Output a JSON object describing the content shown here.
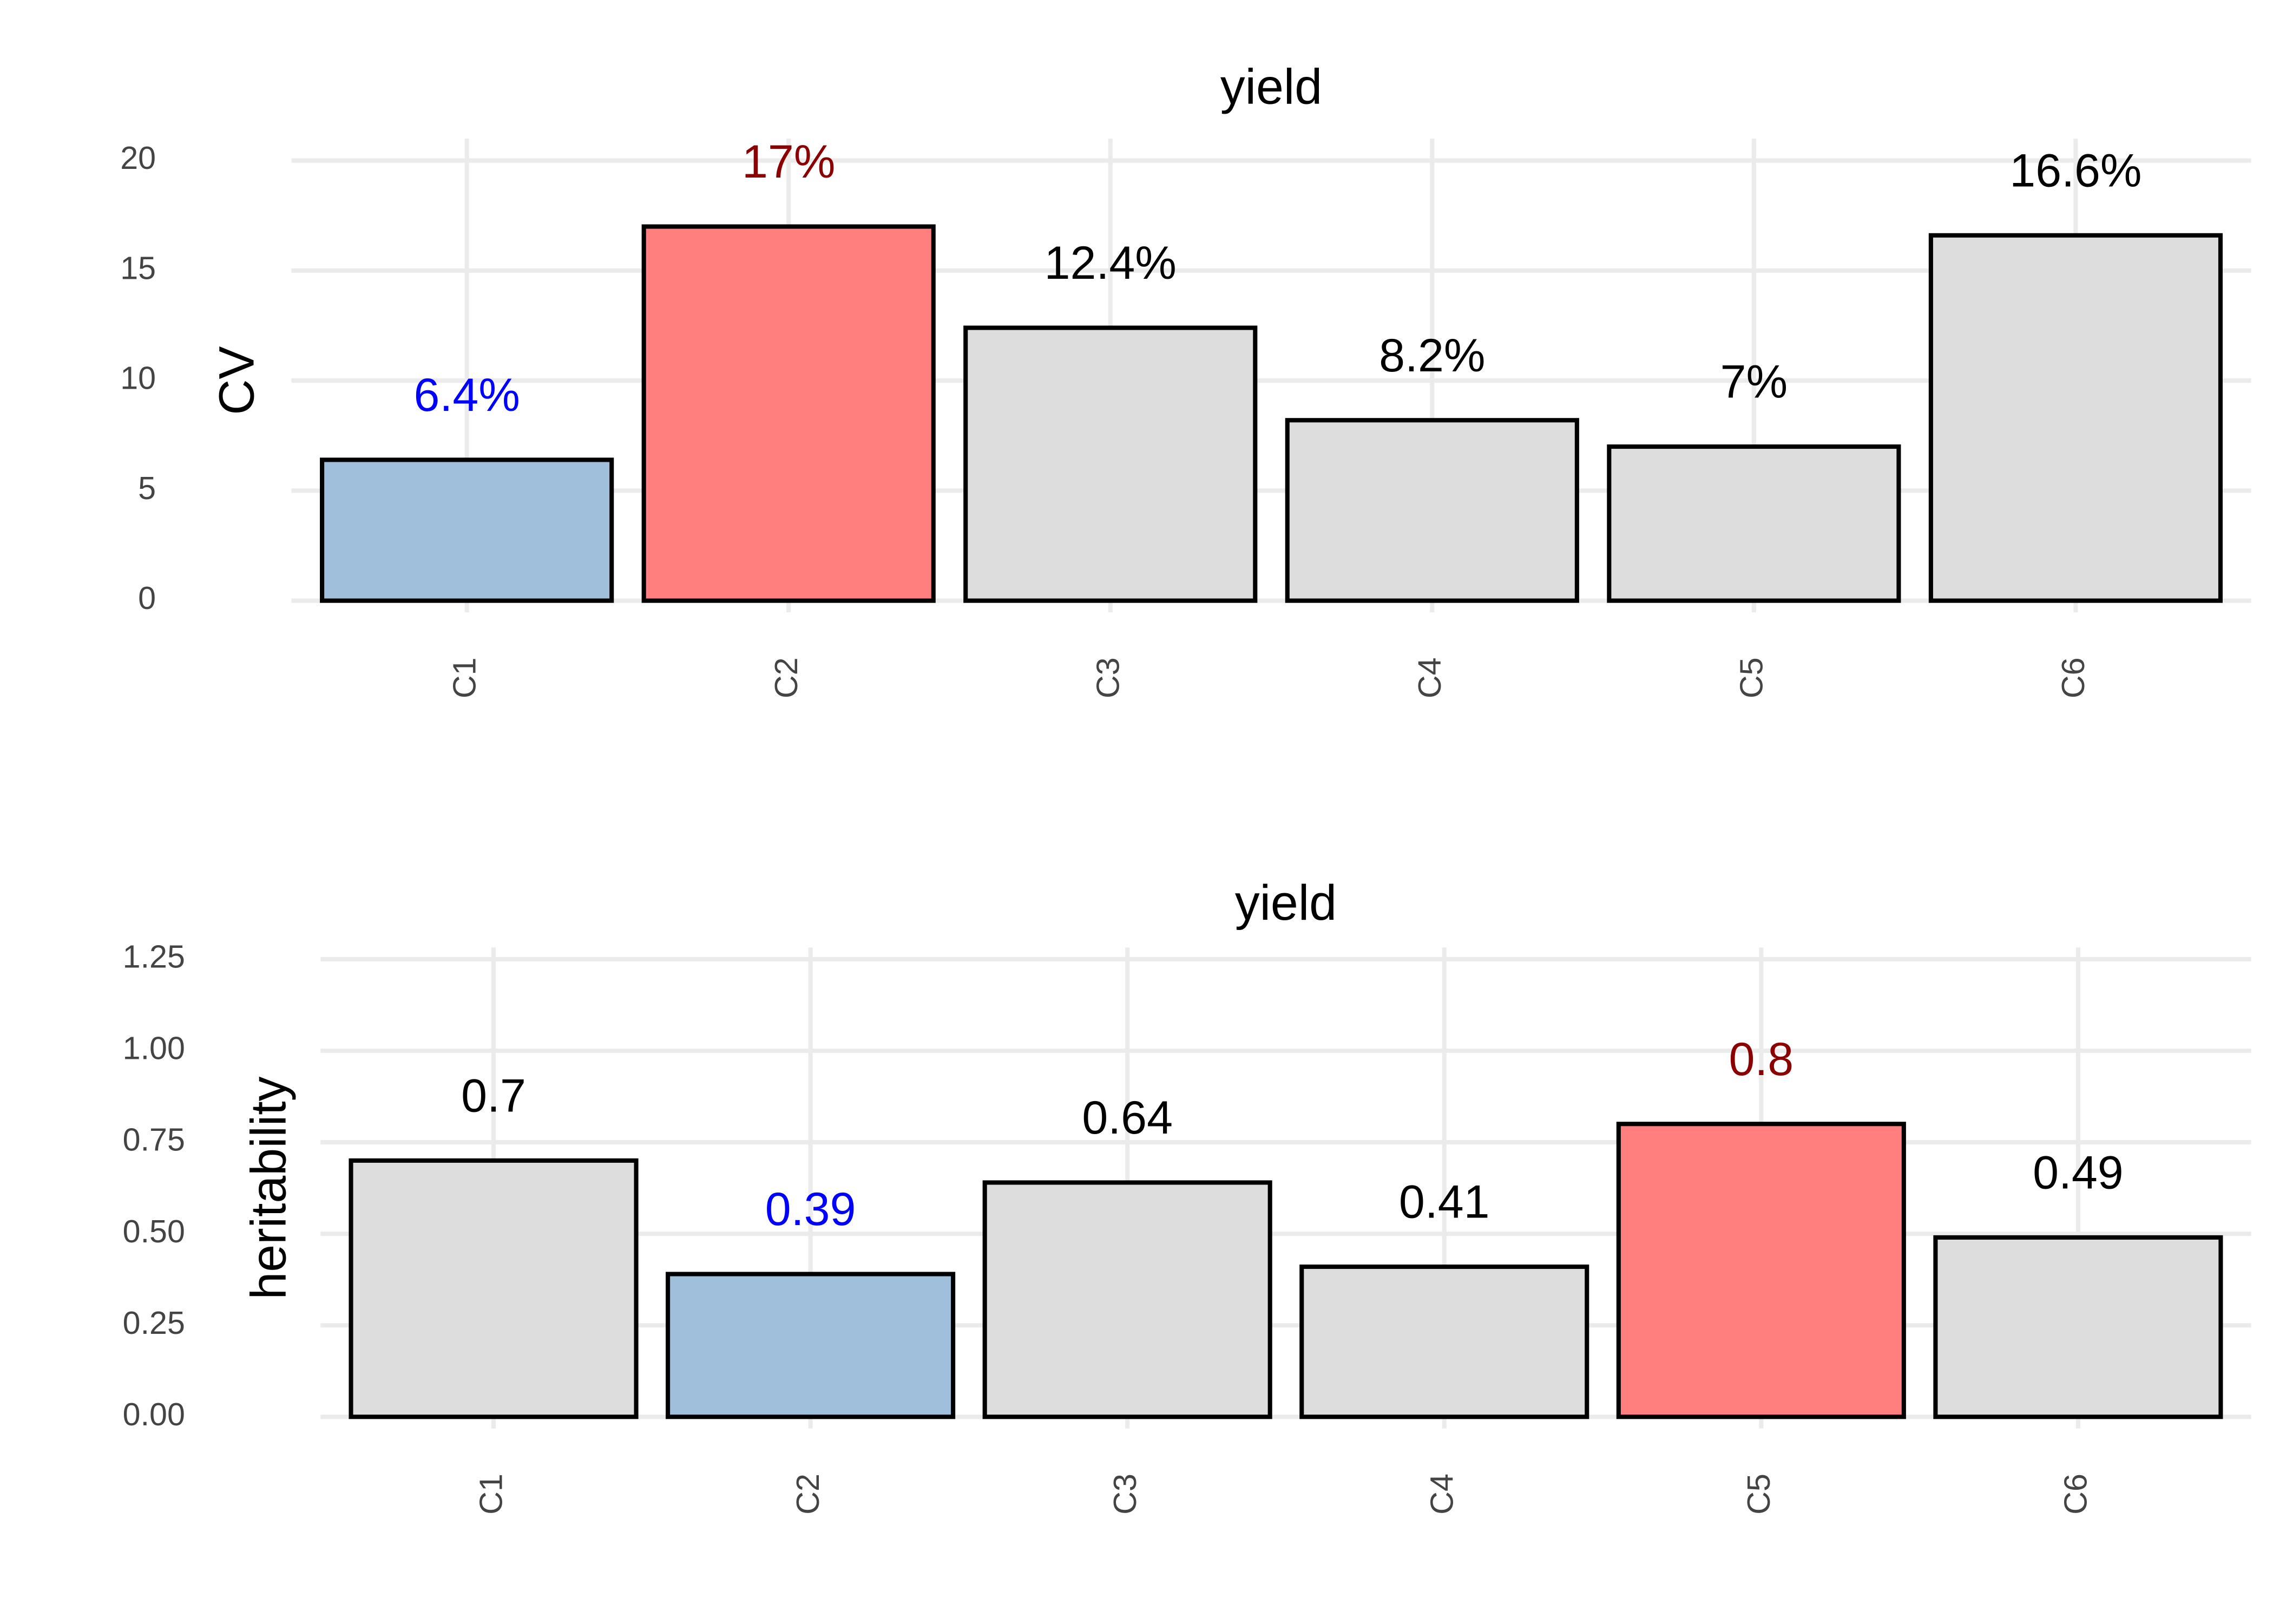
{
  "chart_data": [
    {
      "type": "bar",
      "title": "yield",
      "y_label": "CV",
      "categories": [
        "C1",
        "C2",
        "C3",
        "C4",
        "C5",
        "C6"
      ],
      "values": [
        6.4,
        17,
        12.4,
        8.2,
        7,
        16.6
      ],
      "value_labels": [
        "6.4%",
        "17%",
        "12.4%",
        "8.2%",
        "7%",
        "16.6%"
      ],
      "colors": [
        "#a0bfdb",
        "#ff7f7f",
        "#dddddd",
        "#dddddd",
        "#dddddd",
        "#dddddd"
      ],
      "label_colors": [
        "#0000ff",
        "#8b0000",
        "#000000",
        "#000000",
        "#000000",
        "#000000"
      ],
      "ylim": [
        0,
        20
      ],
      "yticks": [
        0,
        5,
        10,
        15,
        20
      ],
      "grid": true
    },
    {
      "type": "bar",
      "title": "yield",
      "y_label": "heritability",
      "categories": [
        "C1",
        "C2",
        "C3",
        "C4",
        "C5",
        "C6"
      ],
      "values": [
        0.7,
        0.39,
        0.64,
        0.41,
        0.8,
        0.49
      ],
      "colors": [
        "#dddddd",
        "#a0bfdb",
        "#dddddd",
        "#dddddd",
        "#ff7f7f",
        "#dddddd"
      ],
      "label_colors": [
        "#000000",
        "#0000ff",
        "#000000",
        "#000000",
        "#8b0000",
        "#000000"
      ],
      "ylim": [
        0,
        1.25
      ],
      "yticks": [
        {
          "value": 0,
          "label": "0.00"
        },
        {
          "value": 0.25,
          "label": "0.25"
        },
        {
          "value": 0.5,
          "label": "0.50"
        },
        {
          "value": 0.75,
          "label": "0.75"
        },
        {
          "value": 1,
          "label": "1.00"
        },
        {
          "value": 1.25,
          "label": "1.25"
        }
      ],
      "grid": true
    }
  ]
}
